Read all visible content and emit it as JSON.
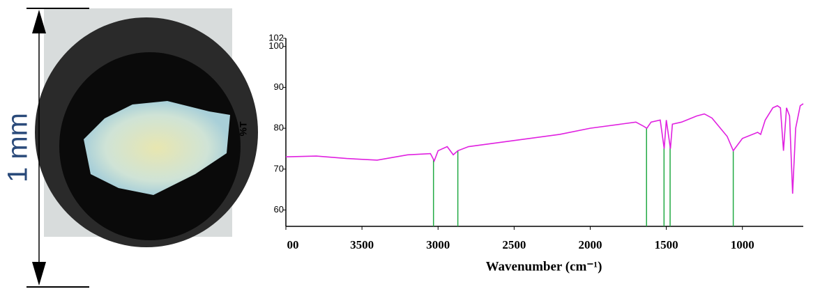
{
  "chart_data": {
    "type": "line",
    "scale_label": "1 mm",
    "xlabel": "Wavenumber (cm⁻¹)",
    "ylabel": "%T",
    "x": [
      4000,
      3800,
      3600,
      3400,
      3200,
      3050,
      3025,
      3000,
      2940,
      2900,
      2870,
      2800,
      2600,
      2400,
      2200,
      2000,
      1800,
      1700,
      1650,
      1628,
      1600,
      1540,
      1514,
      1500,
      1473,
      1460,
      1400,
      1300,
      1250,
      1200,
      1100,
      1060,
      1000,
      900,
      880,
      850,
      800,
      770,
      750,
      730,
      710,
      690,
      670,
      650,
      620,
      600
    ],
    "series": [
      {
        "color": "#e020e0",
        "values": [
          73,
          73.2,
          72.6,
          72.2,
          73.5,
          73.8,
          72,
          74.5,
          75.5,
          73.5,
          74.5,
          75.5,
          76.5,
          77.5,
          78.5,
          80,
          81,
          81.5,
          80.5,
          80,
          81.5,
          82,
          75,
          82,
          75,
          81,
          81.5,
          83,
          83.5,
          82.5,
          78,
          74.5,
          77.5,
          79,
          78.5,
          82,
          85,
          85.5,
          85,
          74.5,
          85,
          83,
          64,
          80,
          85.5,
          86
        ]
      }
    ],
    "markers": [
      3030,
      2870,
      1630,
      1515,
      1475,
      1060
    ],
    "marker_color": "#22aa44",
    "xlim": [
      4000,
      600
    ],
    "ylim": [
      56,
      102
    ],
    "xticks": [
      {
        "value": 4000,
        "label": "00"
      },
      3500,
      3000,
      2500,
      2000,
      1500,
      1000
    ],
    "yticks": [
      60,
      70,
      80,
      90,
      100,
      102
    ]
  }
}
